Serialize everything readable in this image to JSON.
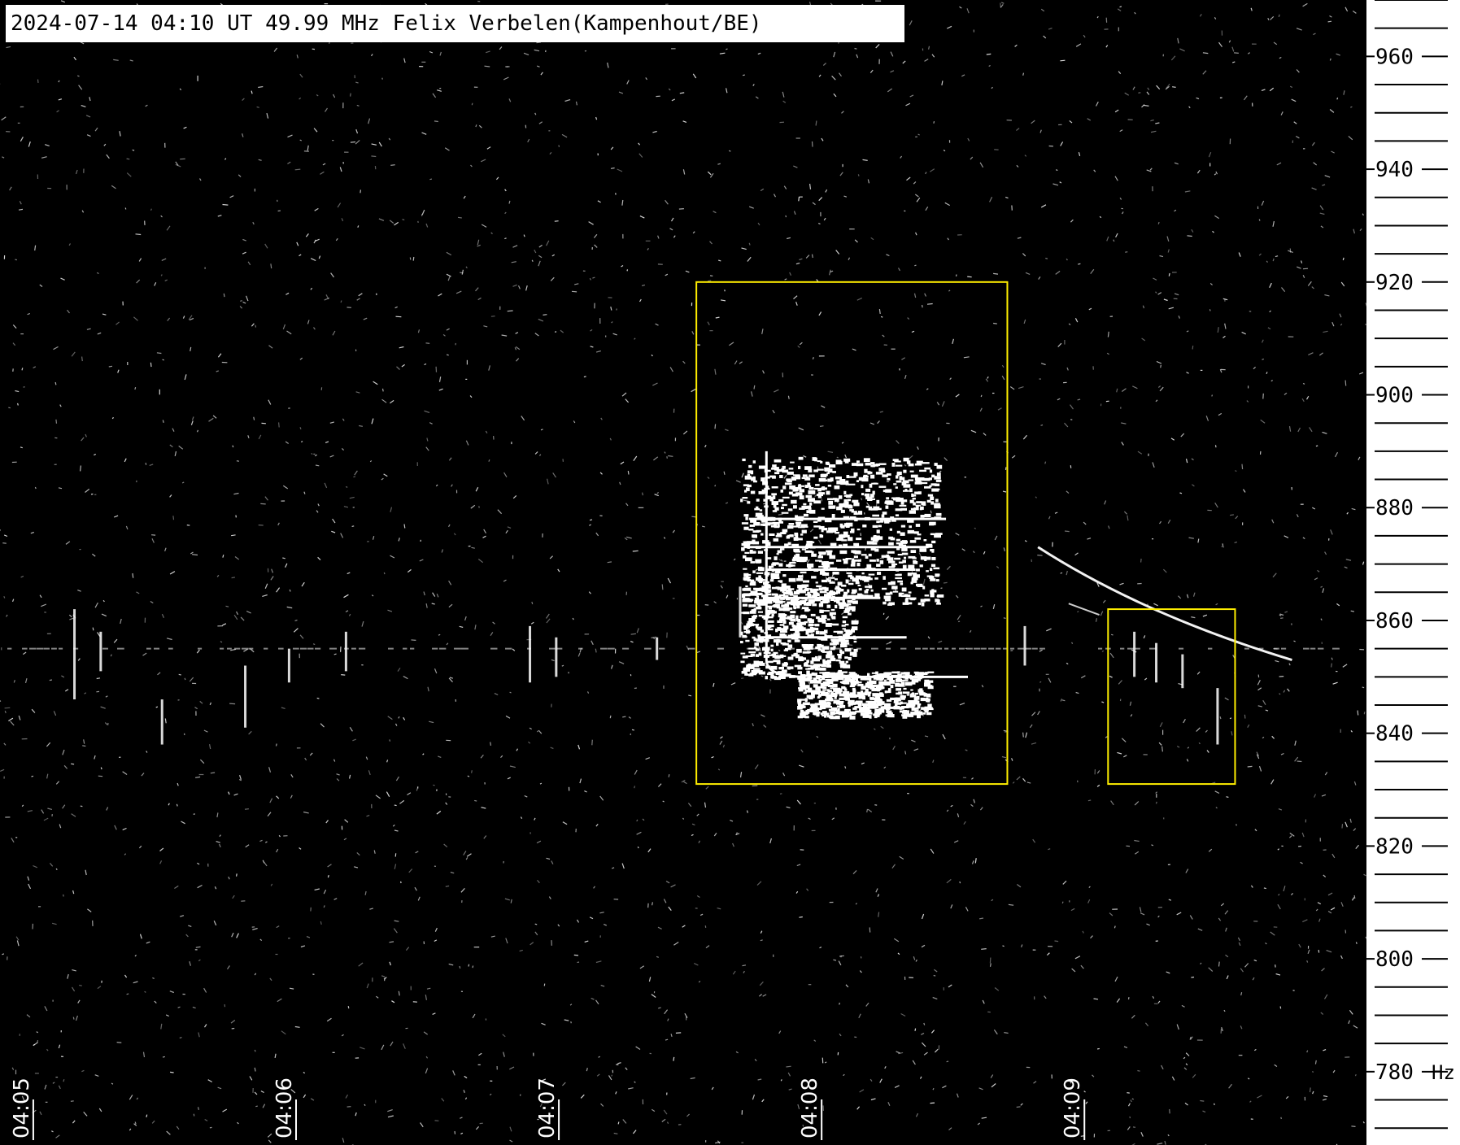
{
  "title": "2024-07-14 04:10 UT 49.99 MHz Felix Verbelen(Kampenhout/BE)",
  "colors": {
    "background": "#000000",
    "signal": "#ffffff",
    "annotation_box": "#ffee00",
    "axis_panel": "#ffffff",
    "axis_ink": "#000000"
  },
  "chart_data": {
    "type": "heatmap",
    "title": "2024-07-14 04:10 UT 49.99 MHz Felix Verbelen(Kampenhout/BE)",
    "xlabel": "",
    "ylabel": "",
    "y_unit": "Hz",
    "x_ticks": [
      "04:05",
      "04:06",
      "04:07",
      "04:08",
      "04:09"
    ],
    "x_range": [
      "04:04:55",
      "04:10:07"
    ],
    "y_ticks": [
      780,
      800,
      820,
      840,
      860,
      880,
      900,
      920,
      940,
      960
    ],
    "y_minor_step": 5,
    "y_range": [
      767,
      970
    ],
    "grid": false,
    "carrier_frequency_hz": 855,
    "annotations": [
      {
        "name": "meteor-echo-box-1",
        "time_start": "04:07:34",
        "time_end": "04:08:45",
        "freq_low": 831,
        "freq_high": 920
      },
      {
        "name": "meteor-echo-box-2",
        "time_start": "04:09:08",
        "time_end": "04:09:37",
        "freq_low": 831,
        "freq_high": 862
      }
    ],
    "features": [
      {
        "name": "meteor-head-echo-1",
        "time": "04:07:50",
        "freq_low": 843,
        "freq_high": 890
      },
      {
        "name": "doppler-trail",
        "time_start": "04:08:52",
        "time_end": "04:09:50",
        "freq_start": 873,
        "freq_end": 853
      }
    ]
  }
}
